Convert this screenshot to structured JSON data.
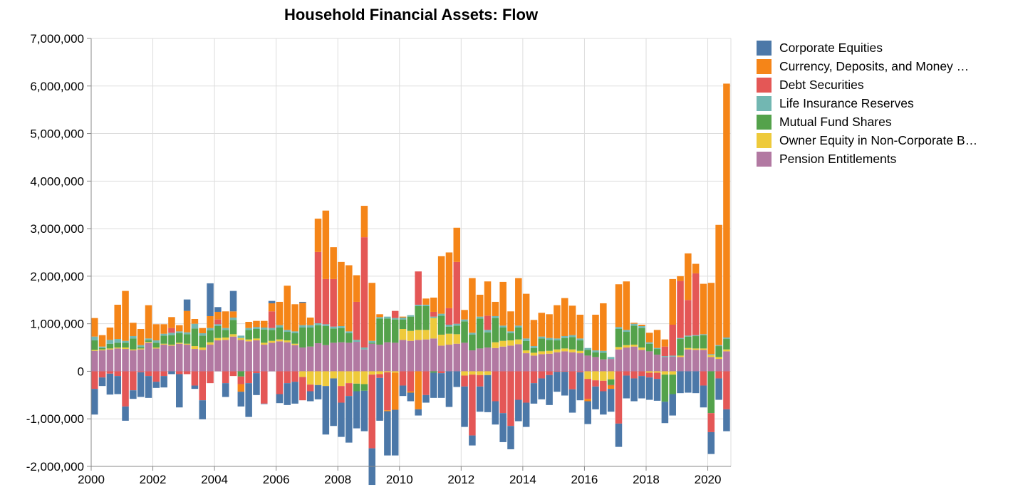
{
  "chart_data": {
    "type": "bar",
    "stacked": true,
    "title": "Household Financial Assets: Flow",
    "xlabel": "",
    "ylabel": "",
    "ylim": [
      -2000000,
      7000000
    ],
    "y_ticks": [
      -2000000,
      -1000000,
      0,
      1000000,
      2000000,
      3000000,
      4000000,
      5000000,
      6000000,
      7000000
    ],
    "y_tick_labels": [
      "-2,000,000",
      "-1,000,000",
      "0",
      "1,000,000",
      "2,000,000",
      "3,000,000",
      "4,000,000",
      "5,000,000",
      "6,000,000",
      "7,000,000"
    ],
    "x_ticks": [
      2000,
      2002,
      2004,
      2006,
      2008,
      2010,
      2012,
      2014,
      2016,
      2018,
      2020
    ],
    "x_tick_labels": [
      "2000",
      "2002",
      "2004",
      "2006",
      "2008",
      "2010",
      "2012",
      "2014",
      "2016",
      "2018",
      "2020"
    ],
    "x_domain": [
      2000,
      2020.75
    ],
    "grid": true,
    "legend_position": "right",
    "x": [
      "2000-Q1",
      "2000-Q2",
      "2000-Q3",
      "2000-Q4",
      "2001-Q1",
      "2001-Q2",
      "2001-Q3",
      "2001-Q4",
      "2002-Q1",
      "2002-Q2",
      "2002-Q3",
      "2002-Q4",
      "2003-Q1",
      "2003-Q2",
      "2003-Q3",
      "2003-Q4",
      "2004-Q1",
      "2004-Q2",
      "2004-Q3",
      "2004-Q4",
      "2005-Q1",
      "2005-Q2",
      "2005-Q3",
      "2005-Q4",
      "2006-Q1",
      "2006-Q2",
      "2006-Q3",
      "2006-Q4",
      "2007-Q1",
      "2007-Q2",
      "2007-Q3",
      "2007-Q4",
      "2008-Q1",
      "2008-Q2",
      "2008-Q3",
      "2008-Q4",
      "2009-Q1",
      "2009-Q2",
      "2009-Q3",
      "2009-Q4",
      "2010-Q1",
      "2010-Q2",
      "2010-Q3",
      "2010-Q4",
      "2011-Q1",
      "2011-Q2",
      "2011-Q3",
      "2011-Q4",
      "2012-Q1",
      "2012-Q2",
      "2012-Q3",
      "2012-Q4",
      "2013-Q1",
      "2013-Q2",
      "2013-Q3",
      "2013-Q4",
      "2014-Q1",
      "2014-Q2",
      "2014-Q3",
      "2014-Q4",
      "2015-Q1",
      "2015-Q2",
      "2015-Q3",
      "2015-Q4",
      "2016-Q1",
      "2016-Q2",
      "2016-Q3",
      "2016-Q4",
      "2017-Q1",
      "2017-Q2",
      "2017-Q3",
      "2017-Q4",
      "2018-Q1",
      "2018-Q2",
      "2018-Q3",
      "2018-Q4",
      "2019-Q1",
      "2019-Q2",
      "2019-Q3",
      "2019-Q4",
      "2020-Q1",
      "2020-Q2",
      "2020-Q3"
    ],
    "series": [
      {
        "name": "Pension Entitlements",
        "color": "#b279a2",
        "values": [
          430000,
          440000,
          460000,
          480000,
          470000,
          440000,
          460000,
          600000,
          480000,
          560000,
          540000,
          580000,
          560000,
          470000,
          450000,
          560000,
          650000,
          660000,
          730000,
          660000,
          630000,
          650000,
          560000,
          600000,
          630000,
          610000,
          550000,
          500000,
          520000,
          590000,
          550000,
          600000,
          610000,
          600000,
          620000,
          460000,
          580000,
          560000,
          610000,
          600000,
          660000,
          640000,
          660000,
          670000,
          690000,
          540000,
          560000,
          580000,
          600000,
          440000,
          480000,
          500000,
          490000,
          520000,
          540000,
          570000,
          380000,
          330000,
          360000,
          370000,
          400000,
          420000,
          400000,
          380000,
          330000,
          300000,
          250000,
          260000,
          460000,
          500000,
          520000,
          450000,
          420000,
          350000,
          300000,
          310000,
          300000,
          460000,
          450000,
          450000,
          300000,
          260000,
          420000
        ]
      },
      {
        "name": "Owner Equity in Non-Corporate B…",
        "color": "#eeca3b",
        "values": [
          20000,
          20000,
          20000,
          20000,
          30000,
          20000,
          20000,
          20000,
          20000,
          20000,
          20000,
          20000,
          20000,
          60000,
          50000,
          50000,
          50000,
          50000,
          50000,
          40000,
          40000,
          40000,
          40000,
          40000,
          40000,
          40000,
          30000,
          -120000,
          -280000,
          -290000,
          -310000,
          -150000,
          -310000,
          -250000,
          -260000,
          -270000,
          -70000,
          -60000,
          -20000,
          -30000,
          230000,
          210000,
          210000,
          200000,
          430000,
          230000,
          230000,
          200000,
          -90000,
          -70000,
          -80000,
          -80000,
          120000,
          120000,
          110000,
          100000,
          60000,
          60000,
          60000,
          60000,
          60000,
          60000,
          60000,
          50000,
          -160000,
          -190000,
          -200000,
          -170000,
          50000,
          50000,
          40000,
          50000,
          -30000,
          -30000,
          -70000,
          -70000,
          30000,
          30000,
          30000,
          30000,
          40000,
          40000,
          40000
        ]
      },
      {
        "name": "Mutual Fund Shares",
        "color": "#54a24b",
        "values": [
          200000,
          30000,
          100000,
          100000,
          100000,
          230000,
          30000,
          30000,
          100000,
          170000,
          200000,
          200000,
          200000,
          370000,
          250000,
          250000,
          250000,
          160000,
          300000,
          -110000,
          200000,
          200000,
          280000,
          230000,
          250000,
          180000,
          220000,
          420000,
          400000,
          380000,
          400000,
          300000,
          300000,
          200000,
          -160000,
          -140000,
          20000,
          550000,
          500000,
          490000,
          200000,
          300000,
          500000,
          500000,
          -30000,
          400000,
          150000,
          180000,
          450000,
          330000,
          630000,
          320000,
          510000,
          280000,
          150000,
          250000,
          200000,
          100000,
          270000,
          230000,
          190000,
          220000,
          260000,
          220000,
          120000,
          100000,
          140000,
          -120000,
          380000,
          280000,
          400000,
          410000,
          160000,
          120000,
          -570000,
          -410000,
          350000,
          240000,
          260000,
          280000,
          -880000,
          230000,
          220000
        ]
      },
      {
        "name": "Life Insurance Reserves",
        "color": "#72b7b2",
        "values": [
          80000,
          30000,
          80000,
          80000,
          40000,
          50000,
          40000,
          40000,
          50000,
          40000,
          50000,
          40000,
          40000,
          100000,
          50000,
          50000,
          40000,
          40000,
          50000,
          50000,
          40000,
          40000,
          40000,
          40000,
          50000,
          40000,
          40000,
          50000,
          50000,
          40000,
          40000,
          40000,
          40000,
          40000,
          40000,
          40000,
          40000,
          30000,
          40000,
          30000,
          40000,
          30000,
          30000,
          30000,
          30000,
          40000,
          40000,
          40000,
          40000,
          40000,
          40000,
          50000,
          40000,
          40000,
          40000,
          40000,
          50000,
          40000,
          40000,
          40000,
          40000,
          40000,
          40000,
          40000,
          40000,
          40000,
          40000,
          40000,
          40000,
          40000,
          40000,
          40000,
          30000,
          20000,
          20000,
          20000,
          20000,
          20000,
          20000,
          20000,
          20000,
          20000,
          30000
        ]
      },
      {
        "name": "Debt Securities",
        "color": "#e45756",
        "values": [
          -370000,
          -130000,
          -50000,
          -100000,
          -740000,
          -400000,
          -20000,
          -100000,
          -220000,
          -100000,
          100000,
          -60000,
          -60000,
          -300000,
          -610000,
          -250000,
          100000,
          -250000,
          -100000,
          -160000,
          -250000,
          -40000,
          -680000,
          350000,
          -480000,
          -250000,
          -220000,
          -490000,
          -140000,
          1500000,
          950000,
          1000000,
          -350000,
          -270000,
          800000,
          2320000,
          -1550000,
          -80000,
          -800000,
          150000,
          -300000,
          -420000,
          700000,
          -500000,
          100000,
          -40000,
          350000,
          1300000,
          -230000,
          -1280000,
          -240000,
          300000,
          -630000,
          -880000,
          -1150000,
          -600000,
          -660000,
          -250000,
          -150000,
          -80000,
          -10000,
          -10000,
          -380000,
          -20000,
          -420000,
          -130000,
          -220000,
          -10000,
          -1100000,
          -90000,
          -150000,
          -100000,
          -100000,
          -130000,
          200000,
          650000,
          1200000,
          750000,
          1300000,
          -300000,
          -400000,
          -150000,
          -800000
        ]
      },
      {
        "name": "Currency, Deposits, and Money …",
        "color": "#f58518",
        "values": [
          390000,
          240000,
          260000,
          720000,
          1050000,
          280000,
          340000,
          700000,
          340000,
          200000,
          230000,
          130000,
          450000,
          100000,
          110000,
          250000,
          160000,
          350000,
          130000,
          -160000,
          130000,
          130000,
          140000,
          170000,
          490000,
          930000,
          570000,
          470000,
          160000,
          700000,
          1440000,
          670000,
          1350000,
          1390000,
          560000,
          660000,
          1220000,
          60000,
          -20000,
          -780000,
          20000,
          -30000,
          -800000,
          130000,
          300000,
          1210000,
          1170000,
          720000,
          200000,
          1150000,
          460000,
          720000,
          300000,
          920000,
          420000,
          1000000,
          940000,
          550000,
          500000,
          500000,
          700000,
          800000,
          620000,
          500000,
          -50000,
          750000,
          1000000,
          -70000,
          900000,
          1020000,
          20000,
          30000,
          200000,
          380000,
          150000,
          960000,
          100000,
          980000,
          200000,
          1060000,
          1500000,
          2530000,
          5340000
        ]
      },
      {
        "name": "Corporate Equities",
        "color": "#4c78a8",
        "values": [
          -540000,
          -180000,
          -440000,
          -380000,
          -300000,
          -180000,
          -520000,
          -460000,
          -130000,
          -240000,
          -60000,
          -700000,
          240000,
          -70000,
          -400000,
          690000,
          100000,
          -290000,
          430000,
          -310000,
          -710000,
          -460000,
          -10000,
          50000,
          -190000,
          -460000,
          -460000,
          20000,
          -210000,
          -300000,
          -1020000,
          -1000000,
          -720000,
          -980000,
          -780000,
          -850000,
          -770000,
          -900000,
          -930000,
          -960000,
          -220000,
          -180000,
          -130000,
          -160000,
          -530000,
          -520000,
          -750000,
          -330000,
          -850000,
          -210000,
          -530000,
          -780000,
          -490000,
          -610000,
          -490000,
          -450000,
          -510000,
          -430000,
          -440000,
          -630000,
          -420000,
          -500000,
          -490000,
          -590000,
          -480000,
          -480000,
          -490000,
          -480000,
          -490000,
          -480000,
          -480000,
          -470000,
          -470000,
          -460000,
          -450000,
          -450000,
          -460000,
          -450000,
          -460000,
          -460000,
          -460000,
          -450000,
          -460000
        ]
      }
    ]
  }
}
